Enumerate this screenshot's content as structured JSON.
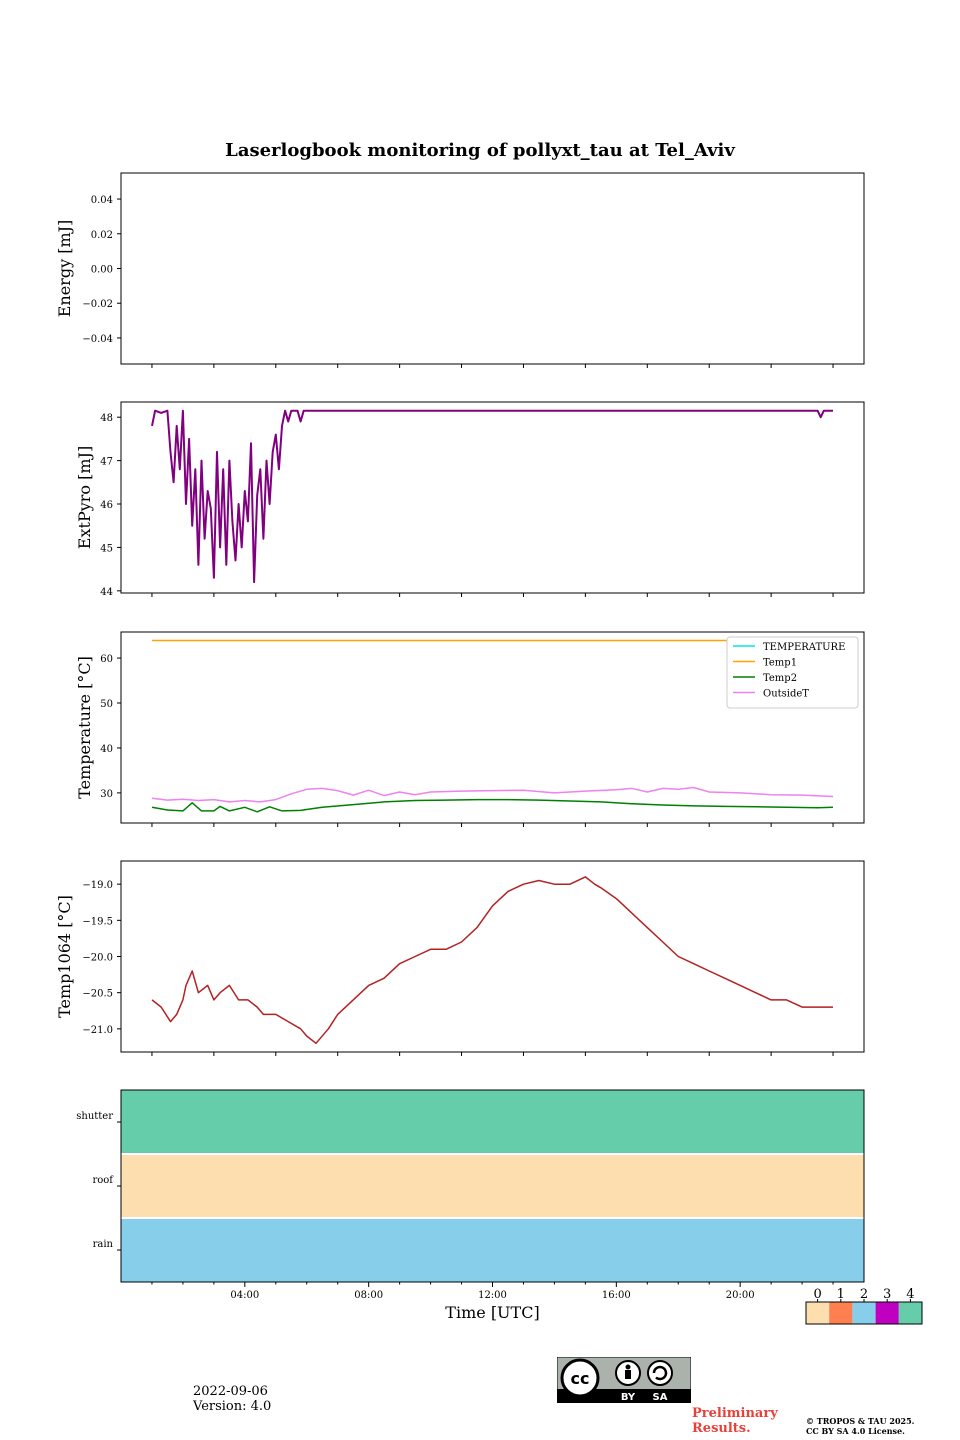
{
  "title": "Laserlogbook monitoring of pollyxt_tau at Tel_Aviv",
  "footer": {
    "date": "2022-09-06",
    "version": "Version: 4.0",
    "preliminary": [
      "Preliminary",
      "Results."
    ],
    "copyright": [
      "© TROPOS & TAU 2025.",
      "CC BY SA 4.0 License."
    ],
    "license_badge": [
      "BY",
      "SA"
    ]
  },
  "chart_data": [
    {
      "type": "line",
      "ylabel": "Energy [mJ]",
      "ylim": [
        -0.055,
        0.055
      ],
      "yticks": [
        0.04,
        0.02,
        0.0,
        -0.02,
        -0.04
      ],
      "yticklabels": [
        "0.04",
        "0.02",
        "0.00",
        "−0.02",
        "−0.04"
      ],
      "series": []
    },
    {
      "type": "line",
      "ylabel": "ExtPyro [mJ]",
      "ylim": [
        43.95,
        48.35
      ],
      "yticks": [
        48,
        47,
        46,
        45,
        44
      ],
      "color": "#800080",
      "series": [
        {
          "x": [
            1.0,
            1.1,
            1.3,
            1.5,
            1.6,
            1.7,
            1.8,
            1.9,
            2.0,
            2.1,
            2.2,
            2.3,
            2.4,
            2.5,
            2.6,
            2.7,
            2.8,
            2.9,
            3.0,
            3.1,
            3.2,
            3.3,
            3.4,
            3.5,
            3.6,
            3.7,
            3.8,
            3.9,
            4.0,
            4.1,
            4.2,
            4.3,
            4.4,
            4.5,
            4.6,
            4.7,
            4.8,
            4.9,
            5.0,
            5.1,
            5.2,
            5.3,
            5.4,
            5.5,
            5.6,
            5.7,
            5.8,
            5.9,
            6.0,
            6.5,
            7.0,
            8.0,
            12.0,
            16.0,
            20.0,
            22.5,
            22.6,
            22.7,
            23.0
          ],
          "y": [
            47.8,
            48.15,
            48.1,
            48.15,
            47.2,
            46.5,
            47.8,
            46.8,
            48.15,
            46.0,
            47.5,
            45.5,
            46.8,
            44.6,
            47.0,
            45.2,
            46.3,
            45.9,
            44.3,
            47.2,
            45.0,
            46.8,
            44.6,
            47.0,
            45.6,
            44.7,
            46.0,
            45.0,
            46.3,
            45.6,
            47.4,
            44.2,
            46.2,
            46.8,
            45.2,
            47.0,
            46.0,
            47.2,
            47.6,
            46.8,
            47.8,
            48.15,
            47.9,
            48.15,
            48.15,
            48.15,
            47.9,
            48.15,
            48.15,
            48.15,
            48.15,
            48.15,
            48.15,
            48.15,
            48.15,
            48.15,
            48.0,
            48.15,
            48.15
          ]
        }
      ]
    },
    {
      "type": "line",
      "ylabel": "Temperature [°C]",
      "ylim": [
        23.3,
        65.8
      ],
      "yticks": [
        60,
        50,
        40,
        30
      ],
      "legend": "top-right",
      "series": [
        {
          "name": "TEMPERATURE",
          "color": "#00e5e5",
          "x": [],
          "y": []
        },
        {
          "name": "Temp1",
          "color": "#ffa500",
          "x": [
            1.0,
            23.0
          ],
          "y": [
            63.9,
            63.9
          ]
        },
        {
          "name": "Temp2",
          "color": "#008000",
          "x": [
            1.0,
            1.5,
            2.0,
            2.3,
            2.6,
            3.0,
            3.2,
            3.5,
            4.0,
            4.4,
            4.8,
            5.2,
            5.8,
            6.5,
            7.5,
            8.5,
            9.5,
            10.5,
            11.5,
            12.5,
            13.5,
            14.5,
            15.5,
            16.5,
            17.5,
            18.5,
            19.5,
            20.5,
            21.5,
            22.5,
            23.0
          ],
          "y": [
            26.8,
            26.2,
            26.0,
            27.8,
            26.0,
            26.0,
            27.0,
            26.0,
            26.8,
            25.8,
            26.9,
            26.0,
            26.1,
            26.8,
            27.4,
            28.0,
            28.3,
            28.4,
            28.5,
            28.5,
            28.4,
            28.2,
            28.0,
            27.6,
            27.3,
            27.1,
            27.0,
            26.9,
            26.8,
            26.7,
            26.8
          ]
        },
        {
          "name": "OutsideT",
          "color": "#ee82ee",
          "x": [
            1.0,
            1.5,
            2.0,
            2.5,
            3.0,
            3.5,
            4.0,
            4.5,
            5.0,
            5.5,
            6.0,
            6.5,
            7.0,
            7.5,
            8.0,
            8.5,
            9.0,
            9.5,
            10.0,
            11.0,
            12.0,
            13.0,
            14.0,
            15.0,
            16.0,
            16.5,
            17.0,
            17.5,
            18.0,
            18.5,
            19.0,
            20.0,
            21.0,
            22.0,
            23.0
          ],
          "y": [
            28.8,
            28.4,
            28.6,
            28.3,
            28.5,
            28.0,
            28.3,
            28.0,
            28.5,
            29.8,
            30.8,
            31.0,
            30.5,
            29.5,
            30.6,
            29.4,
            30.2,
            29.6,
            30.2,
            30.4,
            30.5,
            30.6,
            30.0,
            30.4,
            30.7,
            31.0,
            30.2,
            31.0,
            30.8,
            31.2,
            30.2,
            30.0,
            29.6,
            29.5,
            29.2
          ]
        }
      ]
    },
    {
      "type": "line",
      "ylabel": "Temp1064 [°C]",
      "ylim": [
        -21.32,
        -18.68
      ],
      "yticks": [
        -19.0,
        -19.5,
        -20.0,
        -20.5,
        -21.0
      ],
      "yticklabels": [
        "−19.0",
        "−19.5",
        "−20.0",
        "−20.5",
        "−21.0"
      ],
      "color": "#b22222",
      "series": [
        {
          "x": [
            1.0,
            1.3,
            1.6,
            1.8,
            2.0,
            2.1,
            2.3,
            2.5,
            2.8,
            3.0,
            3.2,
            3.5,
            3.8,
            4.1,
            4.4,
            4.6,
            4.8,
            5.0,
            5.4,
            5.8,
            6.0,
            6.3,
            6.7,
            7.0,
            7.5,
            8.0,
            8.5,
            9.0,
            9.5,
            10.0,
            10.5,
            11.0,
            11.5,
            12.0,
            12.5,
            13.0,
            13.5,
            14.0,
            14.5,
            15.0,
            15.3,
            15.5,
            16.0,
            16.5,
            17.0,
            17.5,
            18.0,
            18.5,
            19.0,
            19.5,
            20.0,
            20.5,
            21.0,
            21.5,
            22.0,
            22.5,
            23.0
          ],
          "y": [
            -20.6,
            -20.7,
            -20.9,
            -20.8,
            -20.6,
            -20.4,
            -20.2,
            -20.5,
            -20.4,
            -20.6,
            -20.5,
            -20.4,
            -20.6,
            -20.6,
            -20.7,
            -20.8,
            -20.8,
            -20.8,
            -20.9,
            -21.0,
            -21.1,
            -21.2,
            -21.0,
            -20.8,
            -20.6,
            -20.4,
            -20.3,
            -20.1,
            -20.0,
            -19.9,
            -19.9,
            -19.8,
            -19.6,
            -19.3,
            -19.1,
            -19.0,
            -18.95,
            -19.0,
            -19.0,
            -18.9,
            -19.0,
            -19.05,
            -19.2,
            -19.4,
            -19.6,
            -19.8,
            -20.0,
            -20.1,
            -20.2,
            -20.3,
            -20.4,
            -20.5,
            -20.6,
            -20.6,
            -20.7,
            -20.7,
            -20.7
          ]
        }
      ]
    },
    {
      "type": "heatmap",
      "categories": [
        "shutter",
        "roof",
        "rain"
      ],
      "values": [
        4,
        0,
        2
      ]
    }
  ],
  "shared_x": {
    "xlabel": "Time [UTC]",
    "xlim": [
      0,
      24
    ],
    "xticks": [
      4,
      8,
      12,
      16,
      20
    ],
    "xticklabels": [
      "04:00",
      "08:00",
      "12:00",
      "16:00",
      "20:00"
    ]
  },
  "colorbar": {
    "ticks": [
      "0",
      "1",
      "2",
      "3",
      "4"
    ],
    "colors": [
      "#fddeae",
      "#ff7f50",
      "#87ceeb",
      "#c000c0",
      "#66cdaa"
    ]
  }
}
